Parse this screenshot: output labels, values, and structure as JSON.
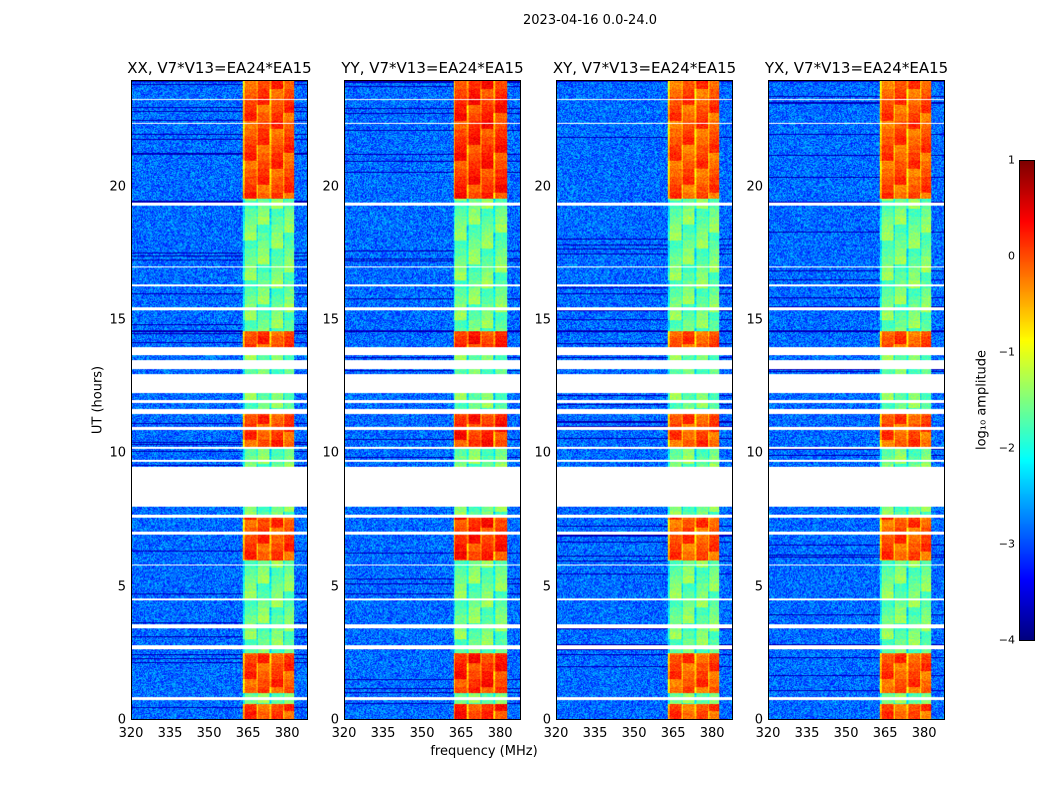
{
  "suptitle": "2023-04-16 0.0-24.0",
  "chart_data": [
    {
      "type": "heatmap",
      "title": "XX, V7*V13=EA24*EA15",
      "xlabel": "",
      "ylabel": "UT (hours)",
      "xlim": [
        320,
        388
      ],
      "ylim": [
        0,
        24
      ],
      "xticks": [
        "320",
        "335",
        "350",
        "365",
        "380"
      ],
      "yticks": [
        "0",
        "5",
        "10",
        "15",
        "20"
      ],
      "rfi_band_mhz": [
        363,
        383
      ],
      "rfi_strength": 0.8,
      "seed": 11
    },
    {
      "type": "heatmap",
      "title": "YY, V7*V13=EA24*EA15",
      "xlabel": "frequency (MHz)",
      "ylabel": "",
      "xlim": [
        320,
        388
      ],
      "ylim": [
        0,
        24
      ],
      "xticks": [
        "320",
        "335",
        "350",
        "365",
        "380"
      ],
      "yticks": [
        "0",
        "5",
        "10",
        "15",
        "20"
      ],
      "rfi_band_mhz": [
        362,
        383
      ],
      "rfi_strength": 1.0,
      "seed": 23
    },
    {
      "type": "heatmap",
      "title": "XY, V7*V13=EA24*EA15",
      "xlabel": "",
      "ylabel": "",
      "xlim": [
        320,
        388
      ],
      "ylim": [
        0,
        24
      ],
      "xticks": [
        "320",
        "335",
        "350",
        "365",
        "380"
      ],
      "yticks": [
        "0",
        "5",
        "10",
        "15",
        "20"
      ],
      "rfi_band_mhz": [
        363,
        383
      ],
      "rfi_strength": 0.7,
      "seed": 37
    },
    {
      "type": "heatmap",
      "title": "YX, V7*V13=EA24*EA15",
      "xlabel": "",
      "ylabel": "",
      "xlim": [
        320,
        388
      ],
      "ylim": [
        0,
        24
      ],
      "xticks": [
        "320",
        "335",
        "350",
        "365",
        "380"
      ],
      "yticks": [
        "0",
        "5",
        "10",
        "15",
        "20"
      ],
      "rfi_band_mhz": [
        363,
        383
      ],
      "rfi_strength": 0.7,
      "seed": 51
    }
  ],
  "flagged_hours": [
    [
      0.75,
      0.85
    ],
    [
      2.65,
      2.8
    ],
    [
      3.45,
      3.6
    ],
    [
      4.5,
      4.55
    ],
    [
      5.8,
      5.85
    ],
    [
      6.95,
      7.05
    ],
    [
      7.6,
      7.7
    ],
    [
      8.0,
      9.5
    ],
    [
      9.7,
      9.75
    ],
    [
      10.2,
      10.25
    ],
    [
      10.9,
      11.0
    ],
    [
      11.5,
      11.7
    ],
    [
      11.9,
      12.0
    ],
    [
      12.3,
      13.0
    ],
    [
      13.2,
      13.5
    ],
    [
      13.7,
      14.0
    ],
    [
      15.4,
      15.5
    ],
    [
      16.3,
      16.35
    ],
    [
      17.0,
      17.05
    ],
    [
      19.35,
      19.45
    ],
    [
      22.4,
      22.45
    ],
    [
      23.3,
      23.35
    ]
  ],
  "strong_rfi_hours": [
    [
      0,
      0.6
    ],
    [
      1,
      2.5
    ],
    [
      6,
      7.6
    ],
    [
      10.2,
      11.5
    ],
    [
      14,
      14.6
    ],
    [
      19.6,
      24
    ]
  ],
  "colorbar": {
    "label": "log₁₀ amplitude",
    "range": [
      -4,
      1
    ],
    "ticks": [
      "1",
      "0",
      "−1",
      "−2",
      "−3",
      "−4"
    ],
    "colormap": "jet"
  }
}
